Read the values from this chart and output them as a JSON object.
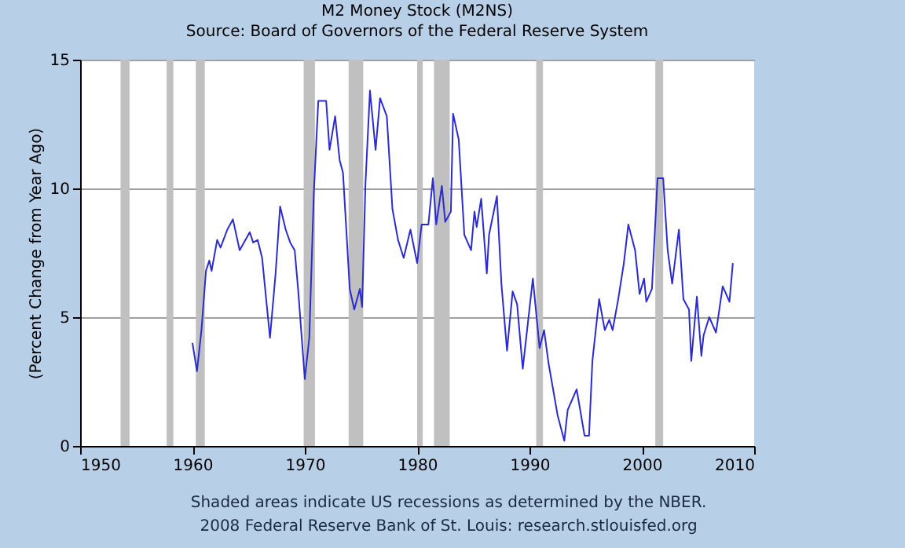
{
  "chart_data": {
    "type": "line",
    "title": "M2 Money Stock (M2NS)",
    "subtitle": "Source: Board of Governors of the Federal Reserve System",
    "ylabel": "(Percent Change from Year Ago)",
    "xlim": [
      1950,
      2010
    ],
    "xticks": [
      1950,
      1960,
      1970,
      1980,
      1990,
      2000,
      2010
    ],
    "ylim": [
      0,
      15
    ],
    "yticks": [
      0,
      5,
      10,
      15
    ],
    "grid": "y",
    "series": [
      {
        "color": "#2b2bd0",
        "x": [
          1960.0,
          1960.4,
          1960.8,
          1961.2,
          1961.5,
          1961.7,
          1962.2,
          1962.5,
          1963.1,
          1963.6,
          1964.2,
          1965.1,
          1965.4,
          1965.8,
          1966.2,
          1966.9,
          1967.4,
          1967.8,
          1968.3,
          1968.7,
          1969.1,
          1969.4,
          1970.0,
          1970.4,
          1970.8,
          1971.2,
          1971.9,
          1972.2,
          1972.7,
          1973.1,
          1973.4,
          1974.0,
          1974.4,
          1974.9,
          1975.1,
          1975.4,
          1975.8,
          1976.3,
          1976.7,
          1977.3,
          1977.8,
          1978.3,
          1978.8,
          1979.4,
          1980.0,
          1980.4,
          1981.0,
          1981.4,
          1981.7,
          1982.2,
          1982.5,
          1983.0,
          1983.2,
          1983.7,
          1984.2,
          1984.8,
          1985.1,
          1985.3,
          1985.7,
          1986.2,
          1986.4,
          1987.1,
          1987.5,
          1988.0,
          1988.5,
          1988.9,
          1989.4,
          1990.3,
          1990.9,
          1991.3,
          1991.7,
          1992.5,
          1993.1,
          1993.4,
          1994.2,
          1994.9,
          1995.3,
          1995.6,
          1996.2,
          1996.7,
          1997.1,
          1997.4,
          1997.9,
          1998.4,
          1998.8,
          1999.4,
          1999.8,
          2000.2,
          2000.4,
          2000.9,
          2001.4,
          2001.9,
          2002.3,
          2002.7,
          2003.3,
          2003.7,
          2004.2,
          2004.4,
          2004.9,
          2005.3,
          2005.5,
          2006.0,
          2006.6,
          2007.2,
          2007.8,
          2008.1
        ],
        "values": [
          4.0,
          2.9,
          4.5,
          6.8,
          7.2,
          6.8,
          8.0,
          7.7,
          8.4,
          8.8,
          7.6,
          8.3,
          7.9,
          8.0,
          7.3,
          4.2,
          6.7,
          9.3,
          8.4,
          7.9,
          7.6,
          6.1,
          2.6,
          4.2,
          9.8,
          13.4,
          13.4,
          11.5,
          12.8,
          11.1,
          10.6,
          6.1,
          5.3,
          6.1,
          5.4,
          10.2,
          13.8,
          11.5,
          13.5,
          12.8,
          9.2,
          8.0,
          7.3,
          8.4,
          7.1,
          8.6,
          8.6,
          10.4,
          8.6,
          10.1,
          8.7,
          9.1,
          12.9,
          11.9,
          8.2,
          7.6,
          9.1,
          8.5,
          9.6,
          6.7,
          8.2,
          9.7,
          6.3,
          3.7,
          6.0,
          5.5,
          3.0,
          6.5,
          3.8,
          4.5,
          3.2,
          1.2,
          0.2,
          1.4,
          2.2,
          0.4,
          0.4,
          3.3,
          5.7,
          4.5,
          4.9,
          4.5,
          5.7,
          7.1,
          8.6,
          7.6,
          5.9,
          6.5,
          5.6,
          6.1,
          10.4,
          10.4,
          7.6,
          6.3,
          8.4,
          5.7,
          5.3,
          3.3,
          5.8,
          3.5,
          4.3,
          5.0,
          4.4,
          6.2,
          5.6,
          7.1
        ]
      }
    ],
    "bands": [
      {
        "axis": "x",
        "from": 1953.6,
        "to": 1954.4,
        "color": "#c0c0c0"
      },
      {
        "axis": "x",
        "from": 1957.7,
        "to": 1958.3,
        "color": "#c0c0c0"
      },
      {
        "axis": "x",
        "from": 1960.3,
        "to": 1961.1,
        "color": "#c0c0c0"
      },
      {
        "axis": "x",
        "from": 1969.9,
        "to": 1970.9,
        "color": "#c0c0c0"
      },
      {
        "axis": "x",
        "from": 1973.9,
        "to": 1975.2,
        "color": "#c0c0c0"
      },
      {
        "axis": "x",
        "from": 1980.0,
        "to": 1980.5,
        "color": "#c0c0c0"
      },
      {
        "axis": "x",
        "from": 1981.5,
        "to": 1982.9,
        "color": "#c0c0c0"
      },
      {
        "axis": "x",
        "from": 1990.6,
        "to": 1991.2,
        "color": "#c0c0c0"
      },
      {
        "axis": "x",
        "from": 2001.2,
        "to": 2001.9,
        "color": "#c0c0c0"
      }
    ],
    "annotations": [
      "Shaded areas indicate US recessions as determined by the NBER.",
      "2008 Federal Reserve Bank of St. Louis: research.stlouisfed.org"
    ]
  }
}
